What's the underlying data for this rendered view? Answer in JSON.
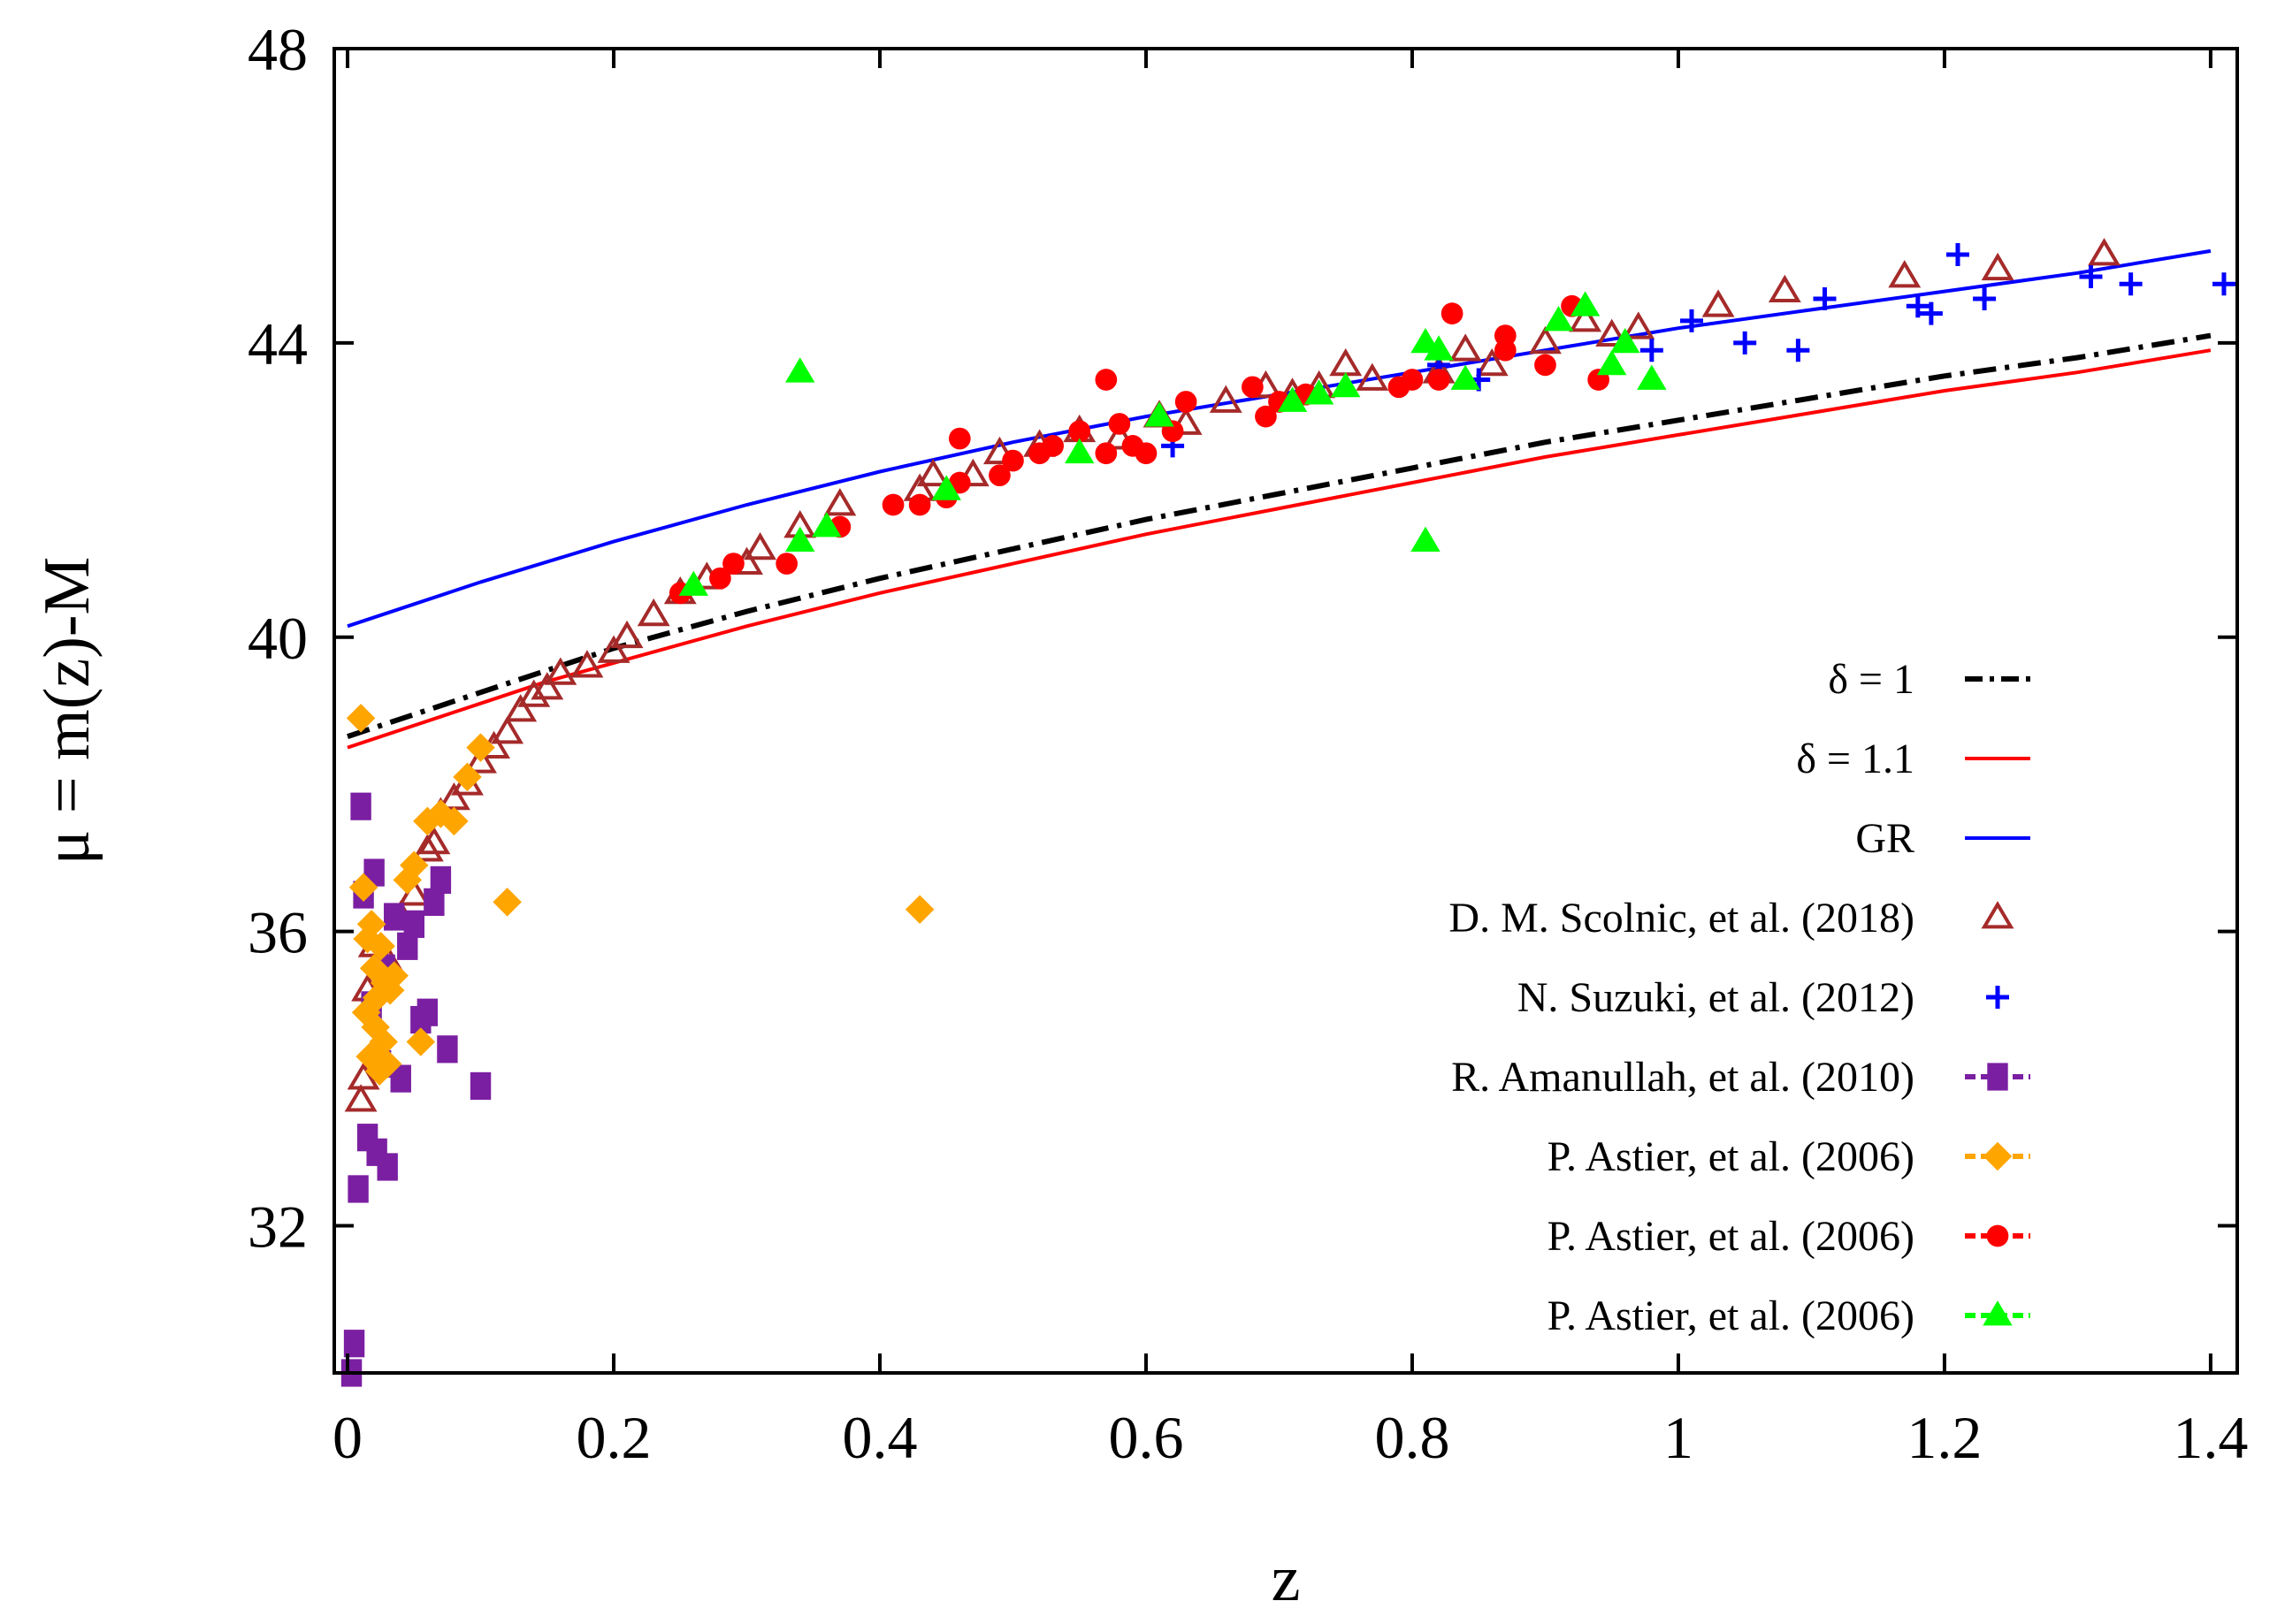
{
  "chart_data": {
    "type": "scatter",
    "xlabel": "z",
    "ylabel": "μ = m(z)-M",
    "xlim": [
      -0.01,
      1.42
    ],
    "ylim": [
      30,
      48
    ],
    "xticks": [
      "0",
      "0.2",
      "0.4",
      "0.6",
      "0.8",
      "1",
      "1.2",
      "1.4"
    ],
    "xtick_values": [
      0,
      0.2,
      0.4,
      0.6,
      0.8,
      1.0,
      1.2,
      1.4
    ],
    "yticks": [
      "32",
      "36",
      "40",
      "44",
      "48"
    ],
    "ytick_values": [
      32,
      36,
      40,
      44,
      48
    ],
    "grid": false,
    "legend_position": "bottom-right",
    "lines": [
      {
        "name": "δ = 1",
        "color": "#000000",
        "dash": "dash-dot",
        "x": [
          0.0,
          0.05,
          0.1,
          0.15,
          0.2,
          0.3,
          0.4,
          0.5,
          0.6,
          0.7,
          0.8,
          0.9,
          1.0,
          1.1,
          1.2,
          1.3,
          1.4
        ],
        "y": [
          38.65,
          38.95,
          39.25,
          39.55,
          39.85,
          40.35,
          40.8,
          41.2,
          41.6,
          41.95,
          42.3,
          42.65,
          42.95,
          43.25,
          43.55,
          43.8,
          44.1
        ]
      },
      {
        "name": "δ = 1.1",
        "color": "#ff0000",
        "dash": "solid",
        "x": [
          0.0,
          0.05,
          0.1,
          0.15,
          0.2,
          0.3,
          0.4,
          0.5,
          0.6,
          0.7,
          0.8,
          0.9,
          1.0,
          1.1,
          1.2,
          1.3,
          1.4
        ],
        "y": [
          38.5,
          38.8,
          39.1,
          39.4,
          39.65,
          40.15,
          40.6,
          41.0,
          41.4,
          41.75,
          42.1,
          42.45,
          42.75,
          43.05,
          43.35,
          43.6,
          43.9
        ]
      },
      {
        "name": "GR",
        "color": "#0000ff",
        "dash": "solid",
        "x": [
          0.0,
          0.1,
          0.2,
          0.3,
          0.4,
          0.5,
          0.6,
          0.7,
          0.8,
          0.9,
          1.0,
          1.1,
          1.2,
          1.3,
          1.4
        ],
        "y": [
          40.15,
          40.75,
          41.3,
          41.8,
          42.25,
          42.65,
          43.0,
          43.3,
          43.6,
          43.9,
          44.2,
          44.45,
          44.7,
          44.95,
          45.25
        ]
      }
    ],
    "series": [
      {
        "name": "D. M. Scolnic, et al. (2018)",
        "marker": "triangle-open",
        "color": "#a52a2a",
        "x": [
          0.01,
          0.012,
          0.015,
          0.02,
          0.03,
          0.04,
          0.05,
          0.06,
          0.065,
          0.07,
          0.08,
          0.09,
          0.1,
          0.11,
          0.12,
          0.13,
          0.14,
          0.15,
          0.16,
          0.18,
          0.2,
          0.21,
          0.23,
          0.25,
          0.27,
          0.3,
          0.31,
          0.34,
          0.37,
          0.43,
          0.44,
          0.47,
          0.49,
          0.52,
          0.55,
          0.58,
          0.61,
          0.63,
          0.66,
          0.69,
          0.71,
          0.73,
          0.75,
          0.77,
          0.82,
          0.84,
          0.86,
          0.9,
          0.93,
          0.95,
          0.97,
          1.03,
          1.08,
          1.17,
          1.24,
          1.32
        ],
        "y": [
          33.7,
          34.0,
          35.2,
          35.8,
          35.6,
          36.2,
          36.5,
          37.1,
          37.2,
          37.6,
          37.8,
          38.0,
          38.3,
          38.5,
          38.7,
          39.0,
          39.2,
          39.3,
          39.5,
          39.6,
          39.8,
          40.0,
          40.3,
          40.6,
          40.8,
          41.0,
          41.2,
          41.5,
          41.8,
          42.0,
          42.2,
          42.2,
          42.5,
          42.6,
          42.8,
          42.7,
          43.0,
          42.9,
          43.2,
          43.4,
          43.3,
          43.4,
          43.7,
          43.5,
          43.6,
          43.9,
          43.7,
          44.0,
          44.3,
          44.1,
          44.2,
          44.5,
          44.7,
          44.9,
          45.0,
          45.2
        ]
      },
      {
        "name": "N. Suzuki, et al. (2012)",
        "marker": "plus",
        "color": "#0000ff",
        "x": [
          0.62,
          0.82,
          0.85,
          0.98,
          1.01,
          1.05,
          1.09,
          1.11,
          1.18,
          1.19,
          1.21,
          1.23,
          1.31,
          1.34,
          1.41
        ],
        "y": [
          42.6,
          43.7,
          43.5,
          43.9,
          44.3,
          44.0,
          43.9,
          44.6,
          44.5,
          44.4,
          45.2,
          44.6,
          44.9,
          44.8,
          44.8
        ]
      },
      {
        "name": "R. Amanullah, et al. (2010)",
        "marker": "square",
        "color": "#7b1fa2",
        "x": [
          0.003,
          0.005,
          0.008,
          0.01,
          0.012,
          0.015,
          0.018,
          0.02,
          0.022,
          0.025,
          0.028,
          0.03,
          0.035,
          0.04,
          0.045,
          0.05,
          0.055,
          0.06,
          0.065,
          0.07,
          0.075,
          0.1
        ],
        "y": [
          30.0,
          30.4,
          32.5,
          37.7,
          36.5,
          33.2,
          35.0,
          36.8,
          33.0,
          34.2,
          35.5,
          32.8,
          36.2,
          34.0,
          35.8,
          36.1,
          34.8,
          34.9,
          36.4,
          36.7,
          34.4,
          33.9
        ]
      },
      {
        "name": "P. Astier, et al. (2006)",
        "marker": "diamond",
        "color": "#ffa500",
        "x": [
          0.01,
          0.012,
          0.014,
          0.015,
          0.017,
          0.018,
          0.02,
          0.021,
          0.022,
          0.024,
          0.025,
          0.027,
          0.028,
          0.03,
          0.032,
          0.035,
          0.045,
          0.05,
          0.055,
          0.06,
          0.07,
          0.08,
          0.09,
          0.1,
          0.12,
          0.43
        ],
        "y": [
          38.9,
          36.6,
          34.9,
          35.9,
          34.3,
          36.1,
          35.5,
          34.7,
          35.1,
          34.1,
          35.8,
          34.5,
          35.3,
          34.2,
          35.2,
          35.4,
          36.7,
          36.9,
          34.5,
          37.5,
          37.6,
          37.5,
          38.1,
          38.5,
          36.4,
          36.3
        ]
      },
      {
        "name": "P. Astier, et al. (2006)",
        "marker": "circle",
        "color": "#ff0000",
        "x": [
          0.25,
          0.28,
          0.29,
          0.33,
          0.37,
          0.41,
          0.43,
          0.45,
          0.46,
          0.46,
          0.49,
          0.5,
          0.52,
          0.53,
          0.55,
          0.57,
          0.57,
          0.58,
          0.59,
          0.6,
          0.62,
          0.63,
          0.68,
          0.69,
          0.7,
          0.72,
          0.79,
          0.8,
          0.82,
          0.83,
          0.87,
          0.87,
          0.9,
          0.92,
          0.94
        ],
        "y": [
          40.6,
          40.8,
          41.0,
          41.0,
          41.5,
          41.8,
          41.8,
          41.9,
          42.1,
          42.7,
          42.2,
          42.4,
          42.5,
          42.6,
          42.8,
          42.5,
          43.5,
          42.9,
          42.6,
          42.5,
          42.8,
          43.2,
          43.4,
          43.0,
          43.2,
          43.3,
          43.4,
          43.5,
          43.5,
          44.4,
          43.9,
          44.1,
          43.7,
          44.5,
          43.5
        ]
      },
      {
        "name": "P. Astier, et al. (2006)",
        "marker": "triangle-filled",
        "color": "#00ff00",
        "x": [
          0.26,
          0.34,
          0.34,
          0.36,
          0.45,
          0.55,
          0.61,
          0.71,
          0.73,
          0.75,
          0.81,
          0.81,
          0.82,
          0.84,
          0.91,
          0.93,
          0.95,
          0.96,
          0.98
        ],
        "y": [
          40.7,
          43.6,
          41.3,
          41.5,
          42.0,
          42.5,
          43.0,
          43.2,
          43.3,
          43.4,
          44.0,
          41.3,
          43.9,
          43.5,
          44.3,
          44.5,
          43.7,
          44.0,
          43.5
        ]
      }
    ]
  }
}
